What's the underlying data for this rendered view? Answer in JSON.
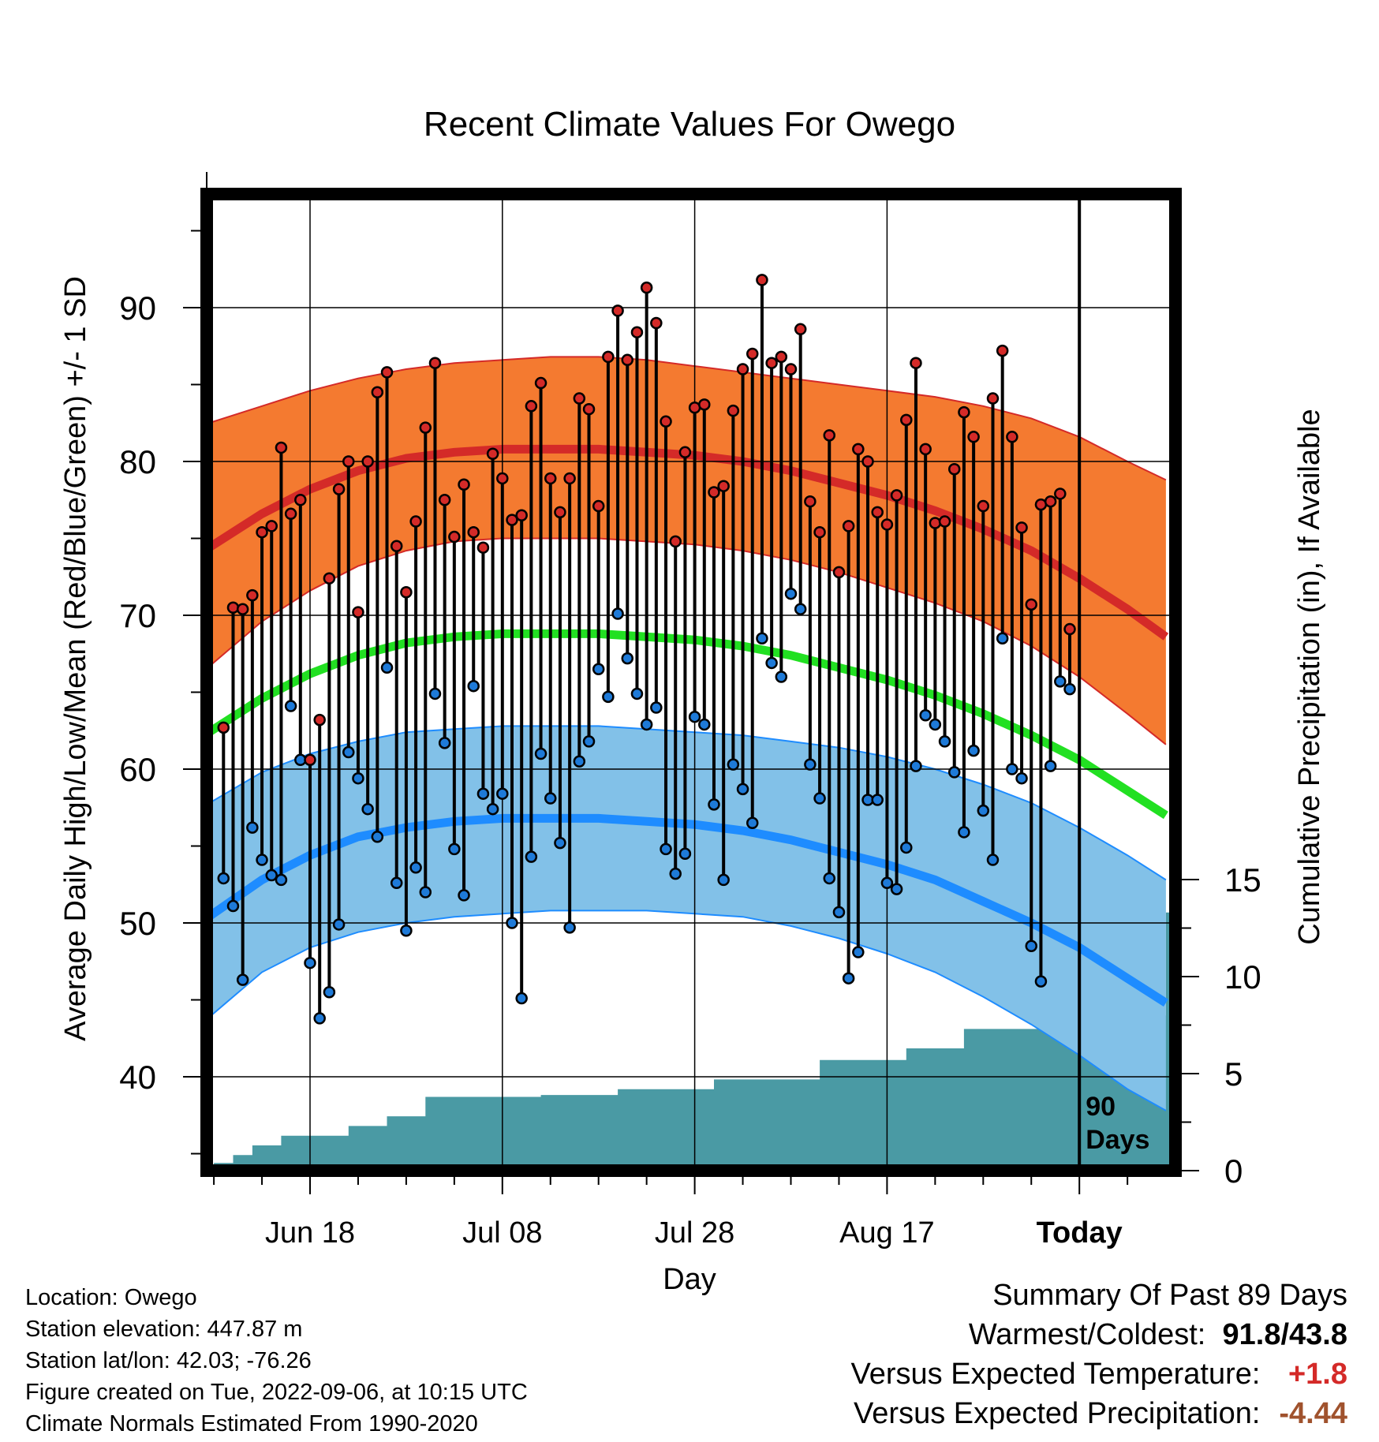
{
  "chart_data": {
    "type": "line",
    "title": "Recent Climate Values For Owego",
    "xlabel": "Day",
    "ylabel": "Average Daily High/Low/Mean (Red/Blue/Green) +/- 1 SD",
    "y2label": "Cumulative Precipitation (in), If Available",
    "ylim": [
      34,
      97
    ],
    "y2lim": [
      0,
      30
    ],
    "yticks": [
      40,
      50,
      60,
      70,
      80,
      90
    ],
    "y2ticks": [
      0,
      5,
      10,
      15
    ],
    "xlim": [
      -11,
      89
    ],
    "xticks": [
      {
        "day": 0,
        "label": "Jun 18"
      },
      {
        "day": 20,
        "label": "Jul 08"
      },
      {
        "day": 40,
        "label": "Jul 28"
      },
      {
        "day": 60,
        "label": "Aug 17"
      },
      {
        "day": 80,
        "label": "Today"
      }
    ],
    "today_label_line1": "90",
    "today_label_line2": "Days",
    "normals": {
      "days": [
        -11,
        -5,
        0,
        5,
        10,
        15,
        20,
        25,
        30,
        35,
        40,
        45,
        50,
        55,
        60,
        65,
        70,
        75,
        80,
        85,
        89
      ],
      "high_mean": [
        74.2,
        76.6,
        78.2,
        79.4,
        80.2,
        80.6,
        80.8,
        80.8,
        80.8,
        80.6,
        80.4,
        80.0,
        79.4,
        78.6,
        77.8,
        76.8,
        75.6,
        74.2,
        72.4,
        70.4,
        68.6
      ],
      "high_upper": [
        82.4,
        83.6,
        84.6,
        85.4,
        86.0,
        86.4,
        86.6,
        86.8,
        86.8,
        86.6,
        86.2,
        85.8,
        85.4,
        85.0,
        84.6,
        84.2,
        83.6,
        82.8,
        81.6,
        80.0,
        78.8
      ],
      "high_lower": [
        66.4,
        69.6,
        71.6,
        73.2,
        74.2,
        74.8,
        75.0,
        75.0,
        75.0,
        74.8,
        74.6,
        74.2,
        73.6,
        72.8,
        71.8,
        70.8,
        69.6,
        68.0,
        66.0,
        63.6,
        61.6
      ],
      "mean": [
        62.2,
        64.6,
        66.2,
        67.4,
        68.2,
        68.6,
        68.8,
        68.8,
        68.8,
        68.6,
        68.4,
        68.0,
        67.4,
        66.6,
        65.8,
        64.8,
        63.6,
        62.2,
        60.6,
        58.6,
        57.0
      ],
      "low_mean": [
        50.2,
        52.8,
        54.4,
        55.6,
        56.2,
        56.6,
        56.8,
        56.8,
        56.8,
        56.6,
        56.4,
        56.0,
        55.4,
        54.6,
        53.8,
        52.8,
        51.4,
        50.0,
        48.4,
        46.4,
        44.8
      ],
      "low_upper": [
        57.6,
        59.8,
        61.0,
        61.8,
        62.4,
        62.6,
        62.8,
        62.8,
        62.8,
        62.6,
        62.4,
        62.2,
        61.8,
        61.4,
        60.8,
        60.0,
        59.0,
        57.8,
        56.2,
        54.4,
        52.8
      ],
      "low_lower": [
        43.6,
        46.8,
        48.4,
        49.4,
        50.0,
        50.4,
        50.6,
        50.8,
        50.8,
        50.8,
        50.6,
        50.4,
        49.8,
        49.0,
        48.0,
        46.8,
        45.2,
        43.4,
        41.4,
        39.2,
        37.8
      ]
    },
    "observations": {
      "days": [
        -9,
        -8,
        -7,
        -6,
        -5,
        -4,
        -3,
        -2,
        -1,
        0,
        1,
        2,
        3,
        4,
        5,
        6,
        7,
        8,
        9,
        10,
        11,
        12,
        13,
        14,
        15,
        16,
        17,
        18,
        19,
        20,
        21,
        22,
        23,
        24,
        25,
        26,
        27,
        28,
        29,
        30,
        31,
        32,
        33,
        34,
        35,
        36,
        37,
        38,
        39,
        40,
        41,
        42,
        43,
        44,
        45,
        46,
        47,
        48,
        49,
        50,
        51,
        52,
        53,
        54,
        55,
        56,
        57,
        58,
        59,
        60,
        61,
        62,
        63,
        64,
        65,
        66,
        67,
        68,
        69,
        70,
        71,
        72,
        73,
        74,
        75,
        76,
        77,
        78,
        79
      ],
      "high": [
        62.7,
        70.5,
        70.4,
        71.3,
        75.4,
        75.8,
        80.9,
        76.6,
        77.5,
        60.6,
        63.2,
        72.4,
        78.2,
        80.0,
        70.2,
        80.0,
        84.5,
        85.8,
        74.5,
        71.5,
        76.1,
        82.2,
        86.4,
        77.5,
        75.1,
        78.5,
        75.4,
        74.4,
        80.5,
        78.9,
        76.2,
        76.5,
        83.6,
        85.1,
        78.9,
        76.7,
        78.9,
        84.1,
        83.4,
        77.1,
        86.8,
        89.8,
        86.6,
        88.4,
        91.3,
        89.0,
        82.6,
        74.8,
        80.6,
        83.5,
        83.7,
        78.0,
        78.4,
        83.3,
        86.0,
        87.0,
        91.8,
        86.4,
        86.8,
        86.0,
        88.6,
        77.4,
        75.4,
        81.7,
        72.8,
        75.8,
        80.8,
        80.0,
        76.7,
        75.9,
        77.8,
        82.7,
        86.4,
        80.8,
        76.0,
        76.1,
        79.5,
        83.2,
        81.6,
        77.1,
        84.1,
        87.2,
        81.6,
        75.7,
        70.7,
        77.2,
        77.4,
        77.9,
        69.1
      ],
      "low": [
        52.9,
        51.1,
        46.3,
        56.2,
        54.1,
        53.1,
        52.8,
        64.1,
        60.6,
        47.4,
        43.8,
        45.5,
        49.9,
        61.1,
        59.4,
        57.4,
        55.6,
        66.6,
        52.6,
        49.5,
        53.6,
        52.0,
        64.9,
        61.7,
        54.8,
        51.8,
        65.4,
        58.4,
        57.4,
        58.4,
        50.0,
        45.1,
        54.3,
        61.0,
        58.1,
        55.2,
        49.7,
        60.5,
        61.8,
        66.5,
        64.7,
        70.1,
        67.2,
        64.9,
        62.9,
        64.0,
        54.8,
        53.2,
        54.5,
        63.4,
        62.9,
        57.7,
        52.8,
        60.3,
        58.7,
        56.5,
        68.5,
        66.9,
        66.0,
        71.4,
        70.4,
        60.3,
        58.1,
        52.9,
        50.7,
        46.4,
        48.1,
        58.0,
        58.0,
        52.6,
        52.2,
        54.9,
        60.2,
        63.5,
        62.9,
        61.8,
        59.8,
        55.9,
        61.2,
        57.3,
        54.1,
        68.5,
        60.0,
        59.4,
        48.5,
        46.2,
        60.2,
        65.7,
        65.2
      ]
    },
    "precip": {
      "days": [
        -10,
        -8,
        -6,
        -3,
        1,
        4,
        6,
        8,
        12,
        18,
        24,
        28,
        32,
        36,
        42,
        47,
        53,
        58,
        62,
        65,
        68,
        74,
        80,
        89
      ],
      "cumulative": [
        0.4,
        0.8,
        1.3,
        1.8,
        1.8,
        2.3,
        2.3,
        2.8,
        3.8,
        3.8,
        3.9,
        3.9,
        4.2,
        4.2,
        4.7,
        4.7,
        5.7,
        5.7,
        6.3,
        6.3,
        7.3,
        7.3,
        8.0,
        13.3
      ],
      "final_total": 13.3
    }
  },
  "footer": {
    "location": "Location: Owego",
    "elevation": "Station elevation: 447.87 m",
    "latlon": "Station lat/lon: 42.03; -76.26",
    "created": "Figure created on Tue, 2022-09-06, at 10:15 UTC",
    "normals_note": "Climate Normals Estimated From 1990-2020"
  },
  "summary": {
    "title": "Summary Of Past 89 Days",
    "warm_cold_label": "Warmest/Coldest:",
    "warmest": "91.8",
    "slash": "/",
    "coldest": "43.8",
    "temp_label": "Versus Expected Temperature:",
    "temp_value": "+1.8",
    "precip_label": "Versus Expected Precipitation:",
    "precip_value": "-4.44"
  },
  "colors": {
    "high_band": "#f47a30",
    "high_line": "#d42a28",
    "low_band": "#82c1e8",
    "low_line": "#1e8cff",
    "mean_line": "#22e022",
    "precip_fill": "#4a9aa4",
    "high_dot": "#d42a28",
    "low_dot": "#1e7ad8",
    "temp_positive": "#d42a28",
    "precip_negative": "#a0522d"
  }
}
